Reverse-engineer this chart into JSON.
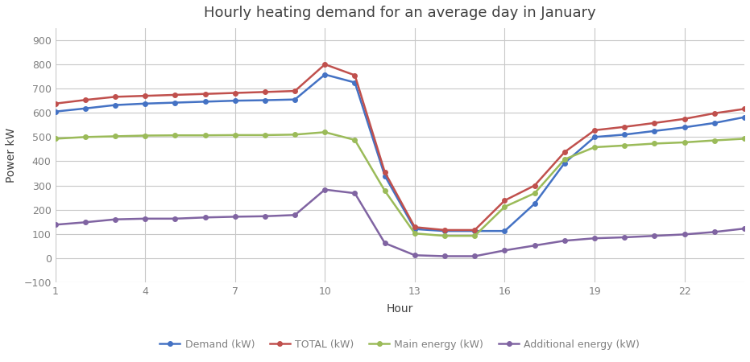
{
  "hours": [
    1,
    2,
    3,
    4,
    5,
    6,
    7,
    8,
    9,
    10,
    11,
    12,
    13,
    14,
    15,
    16,
    17,
    18,
    19,
    20,
    21,
    22,
    23,
    24
  ],
  "demand": [
    605,
    618,
    632,
    638,
    642,
    646,
    650,
    652,
    655,
    758,
    725,
    340,
    120,
    112,
    112,
    112,
    225,
    393,
    500,
    510,
    525,
    540,
    558,
    582
  ],
  "total": [
    638,
    653,
    666,
    670,
    674,
    678,
    682,
    686,
    690,
    800,
    755,
    355,
    128,
    116,
    116,
    238,
    300,
    438,
    528,
    542,
    558,
    575,
    598,
    616
  ],
  "main": [
    493,
    500,
    503,
    506,
    507,
    507,
    508,
    508,
    510,
    520,
    488,
    278,
    102,
    92,
    92,
    212,
    268,
    408,
    458,
    465,
    473,
    478,
    486,
    493
  ],
  "additional": [
    138,
    148,
    160,
    163,
    163,
    168,
    171,
    173,
    178,
    283,
    268,
    62,
    12,
    8,
    8,
    32,
    52,
    72,
    82,
    86,
    92,
    98,
    108,
    122
  ],
  "title": "Hourly heating demand for an average day in January",
  "xlabel": "Hour",
  "ylabel": "Power kW",
  "ylim_min": -100,
  "ylim_max": 950,
  "yticks": [
    -100,
    0,
    100,
    200,
    300,
    400,
    500,
    600,
    700,
    800,
    900
  ],
  "xticks": [
    1,
    4,
    7,
    10,
    13,
    16,
    19,
    22
  ],
  "xlim_min": 1,
  "xlim_max": 24,
  "demand_color": "#4472C4",
  "total_color": "#C0504D",
  "main_color": "#9BBB59",
  "additional_color": "#8064A2",
  "fig_bg_color": "#FFFFFF",
  "plot_bg_color": "#FFFFFF",
  "grid_color": "#C8C8C8",
  "legend_labels": [
    "Demand (kW)",
    "TOTAL (kW)",
    "Main energy (kW)",
    "Additional energy (kW)"
  ],
  "title_color": "#404040",
  "axis_label_color": "#404040",
  "tick_color": "#808080",
  "marker_size": 4,
  "line_width": 1.8,
  "title_fontsize": 13,
  "axis_label_fontsize": 10,
  "tick_fontsize": 9,
  "legend_fontsize": 9
}
